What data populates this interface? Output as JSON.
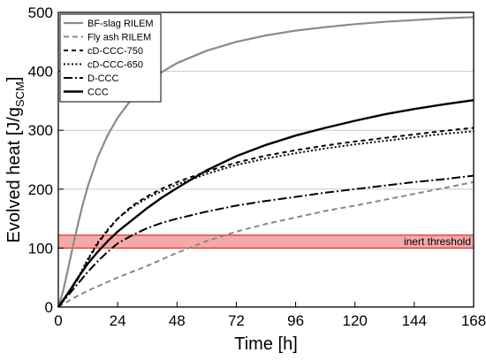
{
  "chart_data": {
    "type": "line",
    "title": "",
    "xlabel": "Time [h]",
    "ylabel": {
      "main": "Evolved heat [J/g",
      "sub": "SCM",
      "close": "]"
    },
    "xlim": [
      0,
      168
    ],
    "ylim": [
      0,
      500
    ],
    "xticks": [
      0,
      24,
      48,
      72,
      96,
      120,
      144,
      168
    ],
    "yticks": [
      0,
      100,
      200,
      300,
      400,
      500
    ],
    "grid": "horizontal",
    "legend_position": "top-left",
    "band": {
      "label": "inert threshold",
      "ymin": 100,
      "ymax": 122,
      "fill": "#f4aaaa",
      "edge": "#e03030"
    },
    "series": [
      {
        "name": "BF-slag RILEM",
        "color": "#8a8a8a",
        "dash": "solid",
        "width": 2.2,
        "x": [
          0,
          2,
          4,
          6,
          8,
          10,
          12,
          16,
          20,
          24,
          30,
          36,
          42,
          48,
          60,
          72,
          84,
          96,
          108,
          120,
          132,
          144,
          156,
          168
        ],
        "y": [
          0,
          28,
          66,
          105,
          142,
          176,
          206,
          255,
          292,
          321,
          355,
          380,
          399,
          414,
          435,
          450,
          461,
          469,
          475,
          480,
          484,
          487,
          490,
          492
        ]
      },
      {
        "name": "Fly ash RILEM",
        "color": "#888888",
        "dash": "6,4",
        "width": 2,
        "x": [
          0,
          6,
          12,
          24,
          36,
          48,
          60,
          72,
          84,
          96,
          108,
          120,
          132,
          144,
          156,
          168
        ],
        "y": [
          0,
          15,
          28,
          50,
          70,
          92,
          112,
          128,
          141,
          152,
          163,
          172,
          182,
          192,
          202,
          212
        ]
      },
      {
        "name": "cD-CCC-750",
        "color": "#000000",
        "dash": "5,4",
        "width": 2,
        "x": [
          0,
          4,
          8,
          12,
          16,
          20,
          24,
          30,
          36,
          42,
          48,
          60,
          72,
          84,
          96,
          108,
          120,
          132,
          144,
          156,
          168
        ],
        "y": [
          0,
          22,
          48,
          80,
          108,
          130,
          150,
          172,
          188,
          201,
          212,
          230,
          245,
          257,
          266,
          274,
          281,
          287,
          293,
          299,
          304
        ]
      },
      {
        "name": "cD-CCC-650",
        "color": "#000000",
        "dash": "2,2.5",
        "width": 2,
        "x": [
          0,
          4,
          8,
          12,
          16,
          20,
          24,
          30,
          36,
          42,
          48,
          60,
          72,
          84,
          96,
          108,
          120,
          132,
          144,
          156,
          168
        ],
        "y": [
          0,
          22,
          50,
          82,
          110,
          132,
          150,
          170,
          185,
          197,
          208,
          226,
          241,
          252,
          261,
          269,
          276,
          282,
          288,
          294,
          298
        ]
      },
      {
        "name": "D-CCC",
        "color": "#000000",
        "dash": "10,3,2,3",
        "width": 2,
        "x": [
          0,
          4,
          8,
          12,
          16,
          20,
          24,
          30,
          36,
          42,
          48,
          60,
          72,
          84,
          96,
          108,
          120,
          132,
          144,
          156,
          168
        ],
        "y": [
          0,
          20,
          40,
          60,
          78,
          94,
          108,
          122,
          134,
          143,
          150,
          162,
          172,
          180,
          187,
          194,
          200,
          206,
          212,
          217,
          223
        ]
      },
      {
        "name": "CCC",
        "color": "#000000",
        "dash": "solid",
        "width": 2.4,
        "x": [
          0,
          4,
          8,
          12,
          16,
          20,
          24,
          30,
          36,
          42,
          48,
          60,
          72,
          84,
          96,
          108,
          120,
          132,
          144,
          156,
          168
        ],
        "y": [
          0,
          24,
          50,
          74,
          94,
          112,
          128,
          148,
          168,
          186,
          202,
          232,
          256,
          275,
          291,
          304,
          316,
          327,
          336,
          344,
          351
        ]
      }
    ]
  }
}
